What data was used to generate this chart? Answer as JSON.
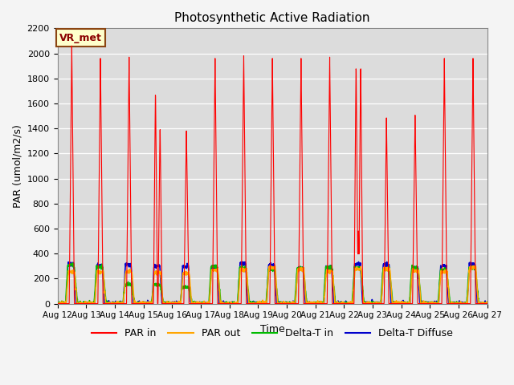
{
  "title": "Photosynthetic Active Radiation",
  "ylabel": "PAR (umol/m2/s)",
  "xlabel": "Time",
  "ylim": [
    0,
    2200
  ],
  "n_days": 15,
  "background_color": "#dcdcdc",
  "fig_background": "#f4f4f4",
  "annotation_text": "VR_met",
  "annotation_bg": "#ffffcc",
  "annotation_border": "#8b4513",
  "legend_entries": [
    "PAR in",
    "PAR out",
    "Delta-T in",
    "Delta-T Diffuse"
  ],
  "legend_colors": [
    "#ff0000",
    "#ffa500",
    "#00bb00",
    "#0000cc"
  ],
  "line_colors": {
    "par_in": "#ff0000",
    "par_out": "#ffa500",
    "delta_t_in": "#00bb00",
    "delta_t_diffuse": "#0000cc"
  },
  "yticks": [
    0,
    200,
    400,
    600,
    800,
    1000,
    1200,
    1400,
    1600,
    1800,
    2000,
    2200
  ],
  "xtick_labels": [
    "Aug 12",
    "Aug 13",
    "Aug 14",
    "Aug 15",
    "Aug 16",
    "Aug 17",
    "Aug 18",
    "Aug 19",
    "Aug 20",
    "Aug 21",
    "Aug 22",
    "Aug 23",
    "Aug 24",
    "Aug 25",
    "Aug 26",
    "Aug 27"
  ]
}
